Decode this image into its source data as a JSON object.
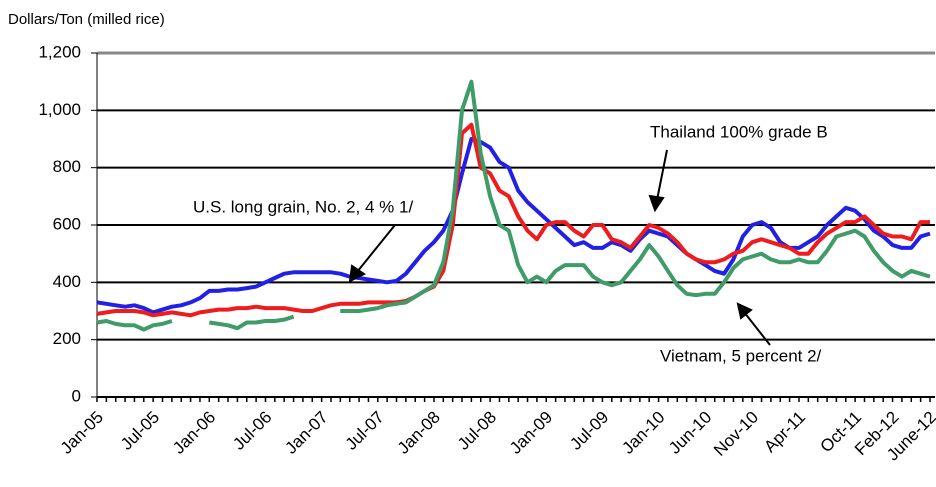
{
  "chart_data": {
    "type": "line",
    "y_label": "Dollars/Ton (milled rice)",
    "categories": [
      "Jan-05",
      null,
      null,
      null,
      null,
      null,
      "Jul-05",
      null,
      null,
      null,
      null,
      null,
      "Jan-06",
      null,
      null,
      null,
      null,
      null,
      "Jul-06",
      null,
      null,
      null,
      null,
      null,
      "Jan-07",
      null,
      null,
      null,
      null,
      null,
      "Jul-07",
      null,
      null,
      null,
      null,
      null,
      "Jan-08",
      null,
      null,
      null,
      null,
      null,
      "Jul-08",
      null,
      null,
      null,
      null,
      null,
      "Jan-09",
      null,
      null,
      null,
      null,
      null,
      "Jul-09",
      null,
      null,
      null,
      null,
      null,
      "Jan-10",
      null,
      null,
      null,
      null,
      "Jun-10",
      null,
      null,
      null,
      null,
      "Nov-10",
      null,
      null,
      null,
      null,
      "Apr-11",
      null,
      null,
      null,
      null,
      null,
      "Oct-11",
      null,
      null,
      null,
      "Feb-12",
      null,
      null,
      null,
      "June-12"
    ],
    "series": [
      {
        "name": "U.S. long grain, No. 2, 4 % 1/",
        "color": "#2121e6",
        "values": [
          330,
          325,
          320,
          315,
          320,
          310,
          295,
          305,
          315,
          320,
          330,
          345,
          370,
          370,
          375,
          375,
          380,
          385,
          400,
          415,
          430,
          435,
          435,
          435,
          435,
          435,
          430,
          420,
          415,
          410,
          405,
          400,
          405,
          430,
          470,
          510,
          540,
          580,
          650,
          780,
          900,
          890,
          870,
          820,
          800,
          720,
          680,
          650,
          620,
          590,
          560,
          530,
          540,
          520,
          520,
          540,
          530,
          510,
          550,
          580,
          570,
          560,
          530,
          500,
          480,
          460,
          440,
          430,
          480,
          560,
          600,
          610,
          590,
          540,
          520,
          520,
          540,
          560,
          600,
          630,
          660,
          650,
          620,
          580,
          560,
          530,
          520,
          520,
          560,
          570
        ]
      },
      {
        "name": "Thailand 100% grade B",
        "color": "#ee1c1c",
        "values": [
          290,
          295,
          300,
          300,
          300,
          295,
          285,
          290,
          295,
          290,
          285,
          295,
          300,
          305,
          305,
          310,
          310,
          315,
          310,
          310,
          310,
          305,
          300,
          300,
          310,
          320,
          325,
          325,
          325,
          330,
          330,
          330,
          330,
          335,
          350,
          370,
          385,
          440,
          600,
          920,
          950,
          800,
          780,
          720,
          700,
          630,
          580,
          550,
          600,
          610,
          610,
          580,
          560,
          600,
          600,
          550,
          540,
          520,
          560,
          600,
          590,
          570,
          540,
          500,
          480,
          470,
          470,
          480,
          500,
          510,
          540,
          550,
          540,
          530,
          520,
          500,
          500,
          540,
          570,
          590,
          610,
          610,
          630,
          600,
          570,
          560,
          560,
          550,
          610,
          610
        ]
      },
      {
        "name": "Vietnam, 5 percent 2/",
        "color": "#3f9b67",
        "values": [
          260,
          265,
          255,
          250,
          250,
          235,
          250,
          255,
          265,
          null,
          null,
          null,
          260,
          255,
          250,
          240,
          260,
          260,
          265,
          265,
          270,
          280,
          null,
          null,
          null,
          null,
          300,
          300,
          300,
          305,
          310,
          320,
          325,
          330,
          350,
          370,
          390,
          470,
          650,
          1000,
          1100,
          850,
          700,
          600,
          580,
          460,
          400,
          420,
          400,
          440,
          460,
          460,
          460,
          420,
          400,
          390,
          400,
          440,
          480,
          530,
          490,
          440,
          390,
          360,
          355,
          360,
          360,
          400,
          450,
          480,
          490,
          500,
          480,
          470,
          470,
          480,
          470,
          470,
          510,
          560,
          570,
          580,
          560,
          510,
          470,
          440,
          420,
          440,
          430,
          420
        ]
      }
    ],
    "ylim": [
      0,
      1200
    ],
    "yticks": [
      0,
      200,
      400,
      600,
      800,
      {
        "value": 1000,
        "label": "1,000"
      },
      {
        "value": 1200,
        "label": "1,200"
      }
    ],
    "grid": true
  }
}
